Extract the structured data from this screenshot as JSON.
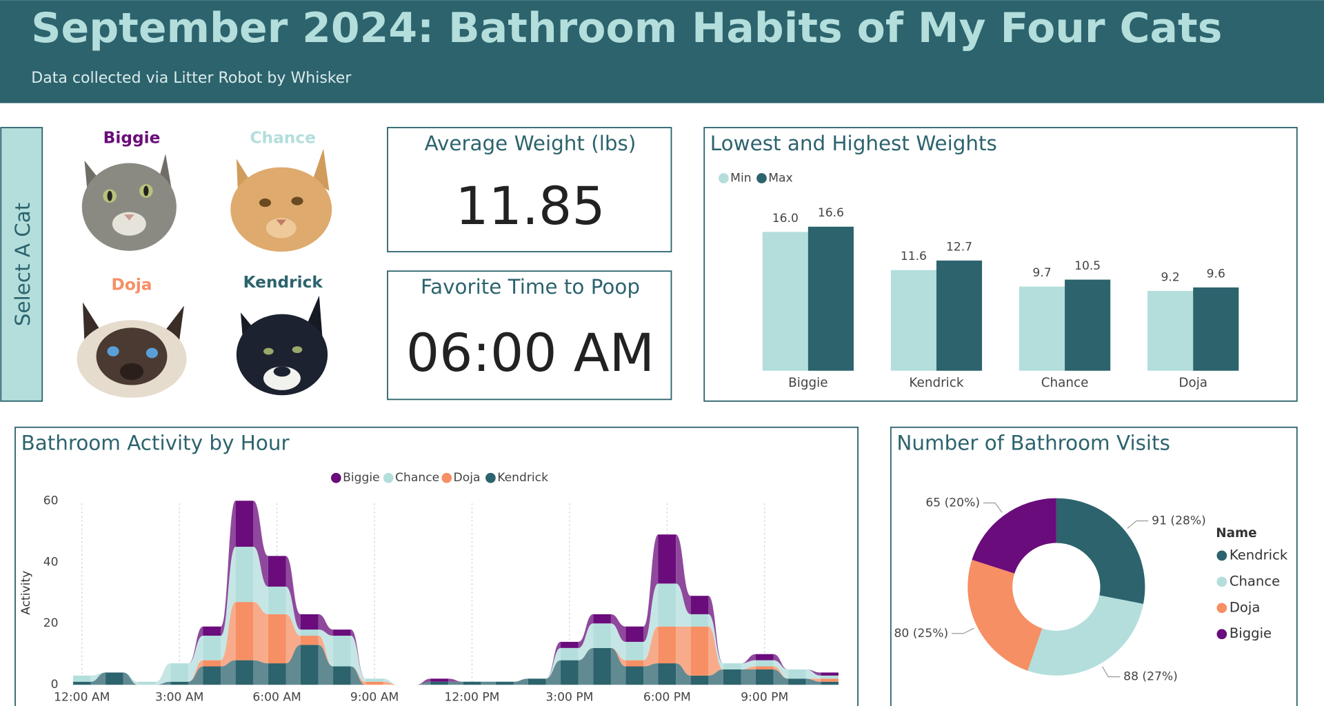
{
  "header": {
    "title": "September 2024: Bathroom Habits of My Four Cats",
    "subtitle": "Data collected via Litter Robot by Whisker"
  },
  "slicer": {
    "label": "Select A Cat",
    "cats": [
      "Biggie",
      "Chance",
      "Doja",
      "Kendrick"
    ]
  },
  "cards": [
    {
      "title": "Average Weight (lbs)",
      "value": 11.85
    },
    {
      "title": "Favorite Time to Poop",
      "value": "06:00 AM"
    }
  ],
  "chart_data": [
    {
      "type": "bar",
      "title": "Lowest and Highest Weights",
      "categories": [
        "Biggie",
        "Kendrick",
        "Chance",
        "Doja"
      ],
      "series": [
        {
          "name": "Min",
          "color": "#b3dedc",
          "values": [
            16.0,
            11.6,
            9.7,
            9.2
          ],
          "value_labels": [
            "16.0",
            "11.6",
            "9.7",
            "9.2"
          ]
        },
        {
          "name": "Max",
          "color": "#2c636d",
          "values": [
            16.6,
            12.7,
            10.5,
            9.6
          ],
          "value_labels": [
            "16.6",
            "12.7",
            "10.5",
            "9.6"
          ]
        }
      ],
      "ylim": [
        0,
        18
      ],
      "legend": "top-left"
    },
    {
      "type": "ribbon",
      "title": "Bathroom Activity by Hour",
      "ylabel": "Activity",
      "categories": [
        "12:00 AM",
        null,
        null,
        "3:00 AM",
        null,
        null,
        "6:00 AM",
        null,
        null,
        "9:00 AM",
        null,
        null,
        "12:00 PM",
        null,
        null,
        "3:00 PM",
        null,
        null,
        "6:00 PM",
        null,
        null,
        "9:00 PM",
        null,
        null
      ],
      "series": [
        {
          "name": "Biggie",
          "color": "#6a0c7b",
          "values": [
            0,
            0,
            0,
            0,
            3,
            15,
            10,
            5,
            2,
            0,
            0,
            1,
            0,
            0,
            0,
            2,
            3,
            5,
            16,
            6,
            0,
            2,
            0,
            1
          ]
        },
        {
          "name": "Chance",
          "color": "#b3dedc",
          "values": [
            2,
            0,
            1,
            6,
            8,
            18,
            9,
            2,
            10,
            1,
            0,
            0,
            0,
            0,
            0,
            4,
            8,
            6,
            14,
            4,
            2,
            2,
            3,
            1
          ]
        },
        {
          "name": "Doja",
          "color": "#f68f64",
          "values": [
            0,
            0,
            0,
            0,
            2,
            19,
            16,
            3,
            0,
            1,
            0,
            0,
            0,
            0,
            0,
            0,
            0,
            2,
            12,
            16,
            0,
            1,
            0,
            1
          ]
        },
        {
          "name": "Kendrick",
          "color": "#2c636d",
          "values": [
            1,
            4,
            0,
            1,
            6,
            8,
            7,
            13,
            6,
            0,
            0,
            1,
            1,
            1,
            2,
            8,
            12,
            6,
            7,
            3,
            5,
            5,
            2,
            1
          ]
        }
      ],
      "ylim": [
        0,
        60
      ],
      "yticks": [
        0,
        20,
        40,
        60
      ],
      "legend": "top-center"
    },
    {
      "type": "donut",
      "title": "Number of Bathroom Visits",
      "legend_title": "Name",
      "categories": [
        "Kendrick",
        "Chance",
        "Doja",
        "Biggie"
      ],
      "values": [
        91,
        88,
        80,
        65
      ],
      "value_labels": [
        "91 (28%)",
        "88 (27%)",
        "80 (25%)",
        "65 (20%)"
      ],
      "colors": [
        "#2c636d",
        "#b3dedc",
        "#f68f64",
        "#6a0c7b"
      ],
      "legend": "right"
    }
  ]
}
